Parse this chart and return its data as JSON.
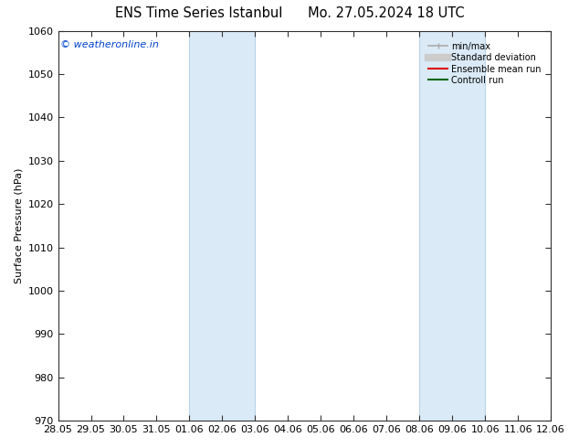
{
  "title_left": "ENS Time Series Istanbul",
  "title_right": "Mo. 27.05.2024 18 UTC",
  "ylabel": "Surface Pressure (hPa)",
  "ylim": [
    970,
    1060
  ],
  "yticks": [
    970,
    980,
    990,
    1000,
    1010,
    1020,
    1030,
    1040,
    1050,
    1060
  ],
  "xlabels": [
    "28.05",
    "29.05",
    "30.05",
    "31.05",
    "01.06",
    "02.06",
    "03.06",
    "04.06",
    "05.06",
    "06.06",
    "07.06",
    "08.06",
    "09.06",
    "10.06",
    "11.06",
    "12.06"
  ],
  "shaded_bands": [
    {
      "xstart_idx": 4,
      "xend_idx": 6,
      "color": "#daeaf7"
    },
    {
      "xstart_idx": 11,
      "xend_idx": 13,
      "color": "#daeaf7"
    }
  ],
  "band_edge_color": "#b8d4ea",
  "watermark": "© weatheronline.in",
  "watermark_color": "#0044cc",
  "legend_items": [
    {
      "label": "min/max",
      "color": "#aaaaaa",
      "lw": 1.2,
      "style": "line_with_caps"
    },
    {
      "label": "Standard deviation",
      "color": "#cccccc",
      "lw": 6
    },
    {
      "label": "Ensemble mean run",
      "color": "#dd0000",
      "lw": 1.5
    },
    {
      "label": "Controll run",
      "color": "#006600",
      "lw": 1.5
    }
  ],
  "bg_color": "#ffffff",
  "plot_bg_color": "#ffffff",
  "border_color": "#333333",
  "title_fontsize": 10.5,
  "label_fontsize": 8,
  "tick_fontsize": 8,
  "watermark_fontsize": 8
}
